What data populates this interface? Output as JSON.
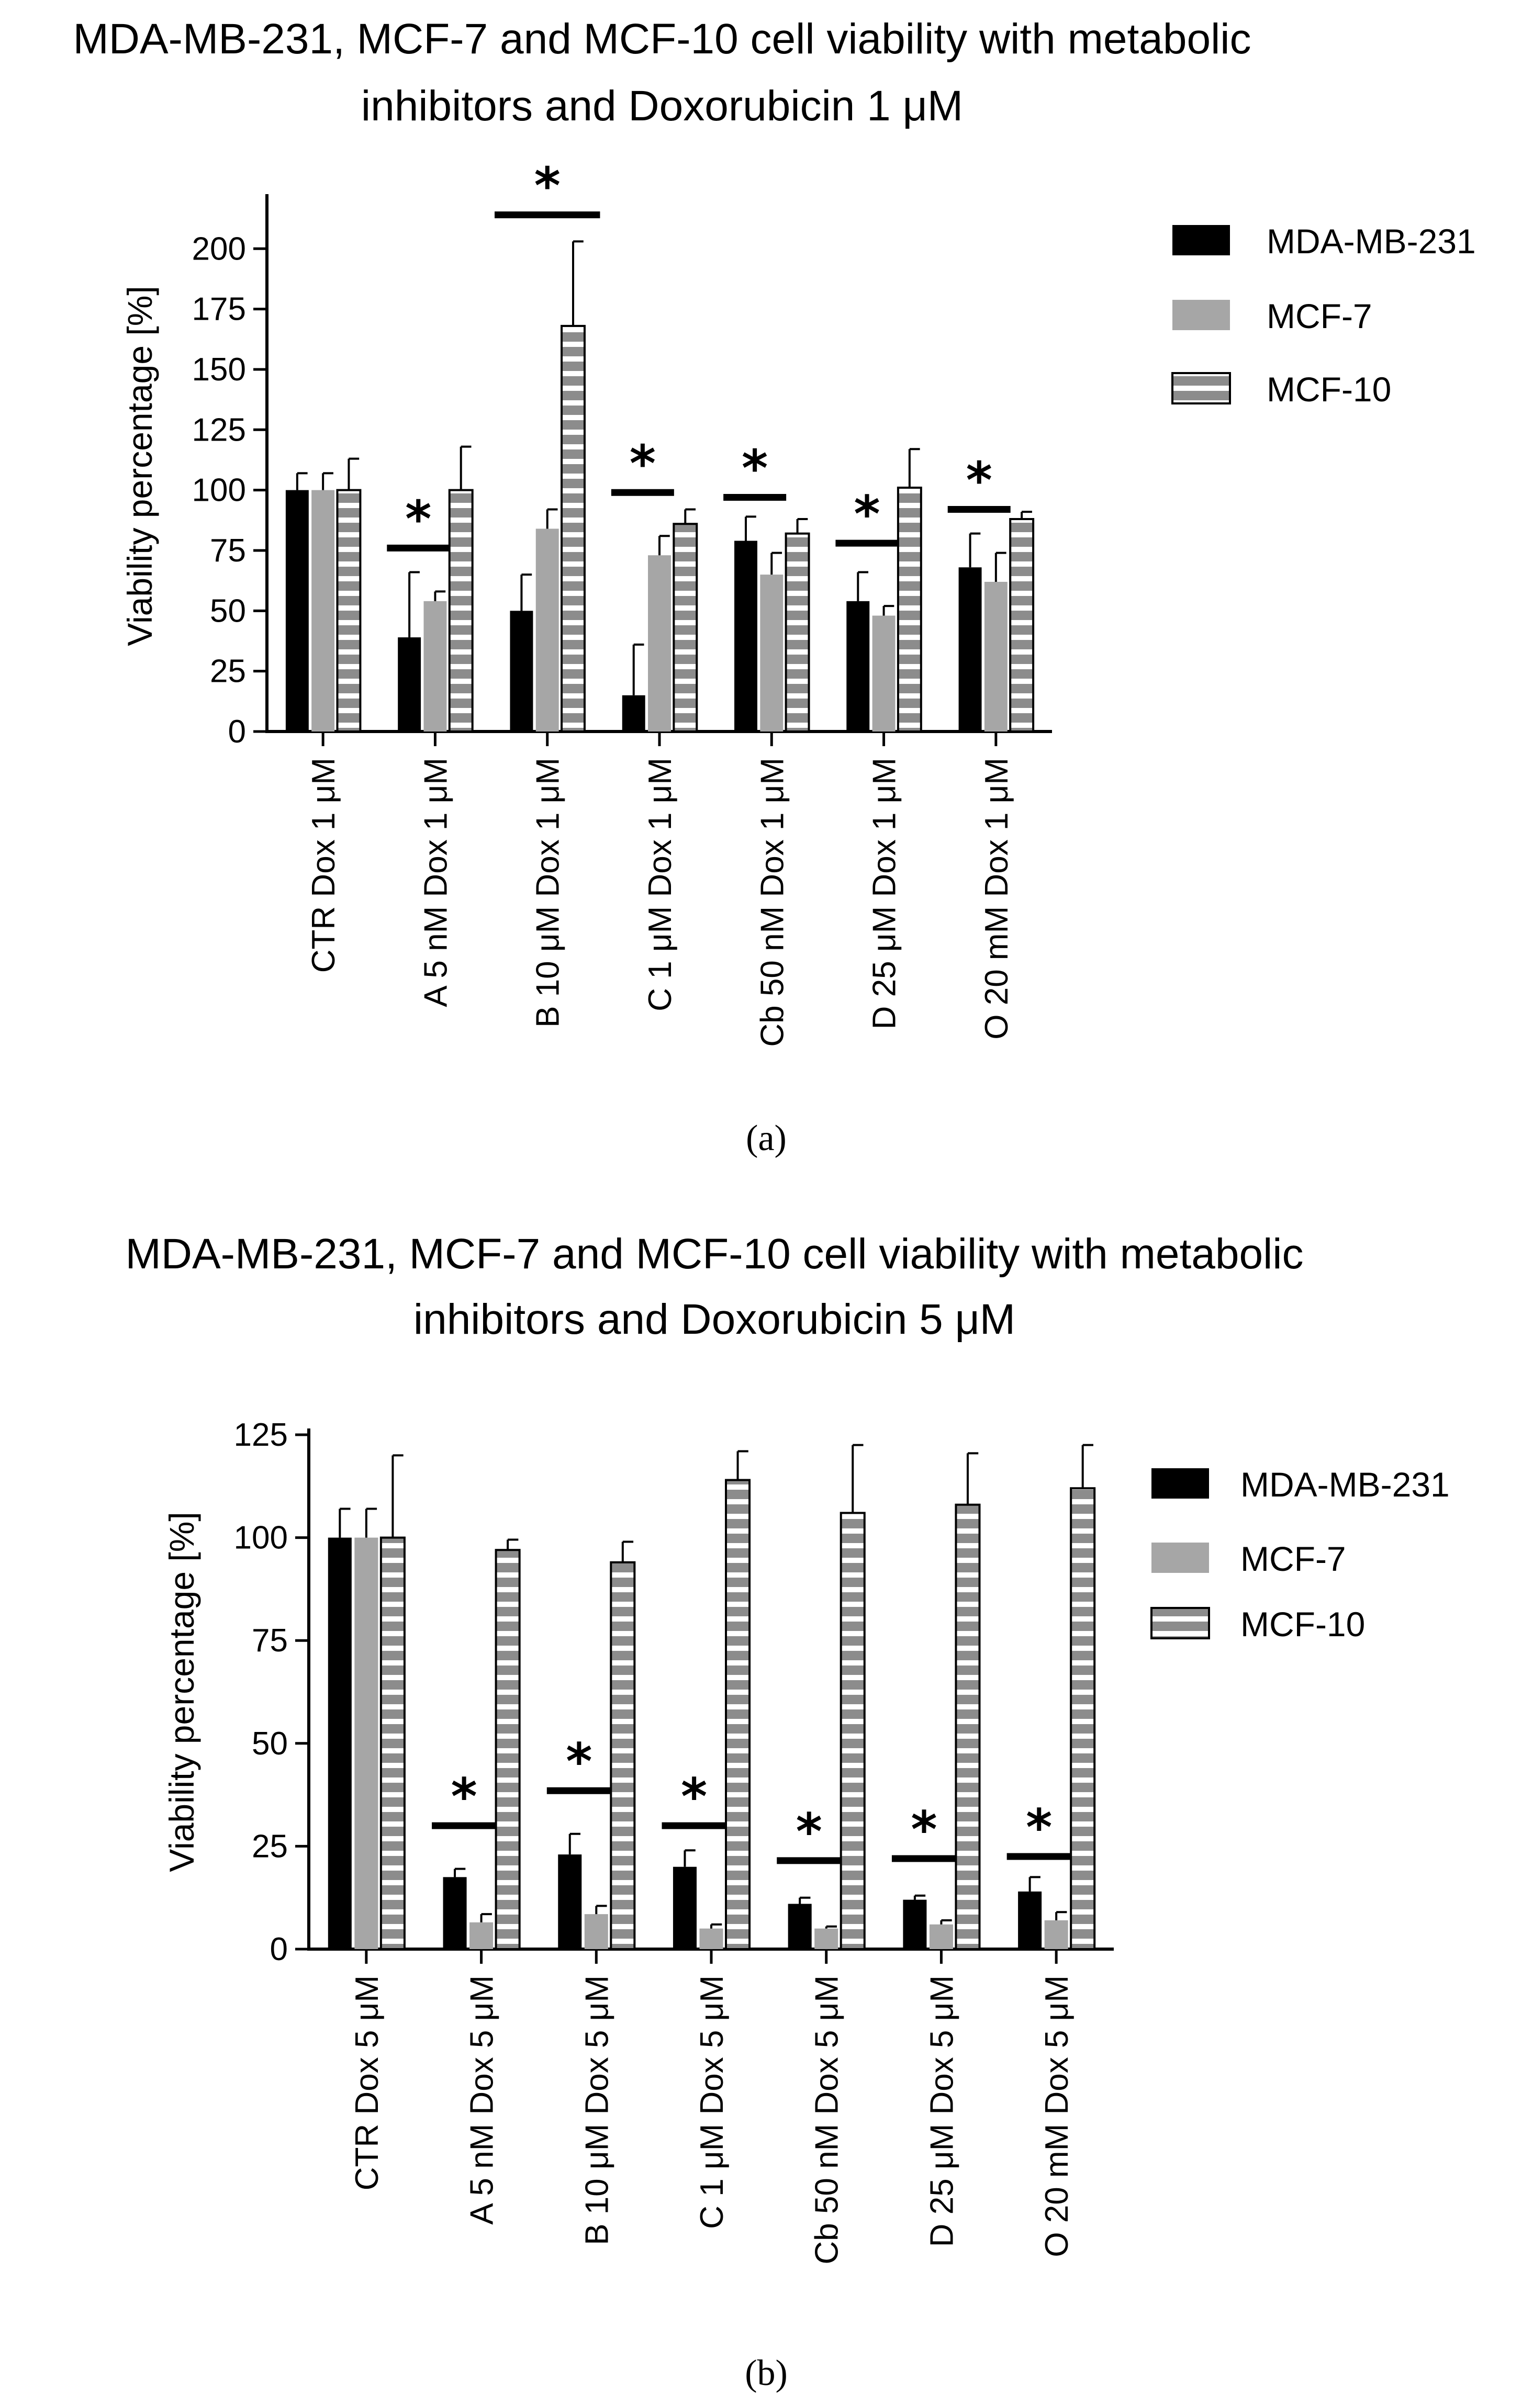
{
  "figure": {
    "colors": {
      "mda": "#000000",
      "mcf7": "#a6a6a6",
      "mcf10_fill": "#8c8c8c",
      "mcf10_stripe": "#ffffff"
    }
  },
  "chart_data": [
    {
      "type": "bar",
      "panel_label": "a",
      "title_lines": [
        "MDA-MB-231, MCF-7 and MCF-10 cell viability with metabolic",
        "inhibitors and Doxorubicin 1 μM"
      ],
      "xlabel": "",
      "ylabel": "Viability percentage [%]",
      "ylim": [
        0,
        220
      ],
      "yticks": [
        0,
        25,
        50,
        75,
        100,
        125,
        150,
        175,
        200
      ],
      "categories": [
        "CTR Dox 1 μM",
        "A 5 nM Dox 1 μM",
        "B 10 μM Dox 1 μM",
        "C 1 μM Dox 1 μM",
        "Cb 50 nM Dox 1 μM",
        "D 25 μM Dox 1 μM",
        "O 20 mM Dox 1 μM"
      ],
      "legend": [
        "MDA-MB-231",
        "MCF-7",
        "MCF-10"
      ],
      "series": [
        {
          "name": "MDA-MB-231",
          "values": [
            100,
            39,
            50,
            15,
            79,
            54,
            68
          ],
          "errors": [
            7,
            27,
            15,
            21,
            10,
            12,
            14
          ]
        },
        {
          "name": "MCF-7",
          "values": [
            100,
            54,
            84,
            73,
            65,
            48,
            62
          ],
          "errors": [
            7,
            4,
            8,
            8,
            9,
            4,
            12
          ]
        },
        {
          "name": "MCF-10",
          "values": [
            100,
            100,
            168,
            86,
            82,
            101,
            88
          ],
          "errors": [
            13,
            18,
            35,
            6,
            6,
            16,
            3
          ]
        }
      ],
      "significance": [
        {
          "category_index": 1,
          "y": 76,
          "label": "*"
        },
        {
          "category_index": 2,
          "y": 214,
          "label": "*"
        },
        {
          "category_index": 3,
          "y": 99,
          "label": "*"
        },
        {
          "category_index": 4,
          "y": 97,
          "label": "*"
        },
        {
          "category_index": 5,
          "y": 78,
          "label": "*"
        },
        {
          "category_index": 6,
          "y": 92,
          "label": "*"
        }
      ]
    },
    {
      "type": "bar",
      "panel_label": "b",
      "title_lines": [
        "MDA-MB-231, MCF-7 and MCF-10 cell viability with metabolic",
        "inhibitors and Doxorubicin 5 μM"
      ],
      "xlabel": "",
      "ylabel": "Viability percentage [%]",
      "ylim": [
        0,
        125
      ],
      "yticks": [
        0,
        25,
        50,
        75,
        100,
        125
      ],
      "categories": [
        "CTR Dox 5 μM",
        "A 5 nM Dox 5 μM",
        "B 10 μM Dox 5 μM",
        "C 1 μM Dox 5 μM",
        "Cb 50 nM Dox 5 μM",
        "D 25 μM Dox 5 μM",
        "O 20 mM Dox 5 μM"
      ],
      "legend": [
        "MDA-MB-231",
        "MCF-7",
        "MCF-10"
      ],
      "series": [
        {
          "name": "MDA-MB-231",
          "values": [
            100,
            17.5,
            23,
            20,
            11,
            12,
            14
          ],
          "errors": [
            7,
            2,
            5,
            4,
            1.5,
            1,
            3.5
          ]
        },
        {
          "name": "MCF-7",
          "values": [
            100,
            6.5,
            8.5,
            5,
            5,
            6,
            7
          ],
          "errors": [
            7,
            2,
            2,
            1,
            0.5,
            1,
            2
          ]
        },
        {
          "name": "MCF-10",
          "values": [
            100,
            97,
            94,
            114,
            106,
            108,
            112
          ],
          "errors": [
            20,
            2.5,
            5,
            7,
            16.5,
            12.5,
            10.5
          ]
        }
      ],
      "significance": [
        {
          "category_index": 1,
          "y": 30,
          "label": "*"
        },
        {
          "category_index": 2,
          "y": 38.5,
          "label": "*"
        },
        {
          "category_index": 3,
          "y": 30,
          "label": "*"
        },
        {
          "category_index": 4,
          "y": 21.5,
          "label": "*"
        },
        {
          "category_index": 5,
          "y": 22,
          "label": "*"
        },
        {
          "category_index": 6,
          "y": 22.5,
          "label": "*"
        }
      ]
    }
  ]
}
